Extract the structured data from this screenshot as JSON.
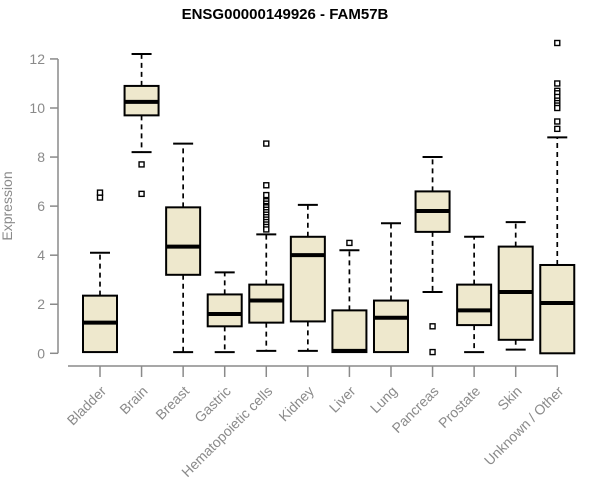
{
  "chart_data": {
    "type": "boxplot",
    "title": "ENSG00000149926 - FAM57B",
    "xlabel": "",
    "ylabel": "Expression",
    "ylim": [
      0,
      12
    ],
    "yticks": [
      0,
      2,
      4,
      6,
      8,
      10,
      12
    ],
    "grid": false,
    "legend": null,
    "categories": [
      "Bladder",
      "Brain",
      "Breast",
      "Gastric",
      "Hematopoietic cells",
      "Kidney",
      "Liver",
      "Lung",
      "Pancreas",
      "Prostate",
      "Skin",
      "Unknown / Other"
    ],
    "series": [
      {
        "name": "Bladder",
        "low": 0.05,
        "q1": 0.05,
        "median": 1.25,
        "q3": 2.35,
        "high": 4.1,
        "outliers": [
          6.35,
          6.55
        ]
      },
      {
        "name": "Brain",
        "low": 8.2,
        "q1": 9.7,
        "median": 10.25,
        "q3": 10.9,
        "high": 12.2,
        "outliers": [
          7.7,
          6.5
        ]
      },
      {
        "name": "Breast",
        "low": 0.05,
        "q1": 3.2,
        "median": 4.35,
        "q3": 5.95,
        "high": 8.55,
        "outliers": []
      },
      {
        "name": "Gastric",
        "low": 0.05,
        "q1": 1.1,
        "median": 1.6,
        "q3": 2.4,
        "high": 3.3,
        "outliers": []
      },
      {
        "name": "Hematopoietic cells",
        "low": 0.1,
        "q1": 1.25,
        "median": 2.15,
        "q3": 2.8,
        "high": 4.85,
        "outliers": [
          8.55,
          6.85,
          6.45,
          6.2,
          6.1,
          6.0,
          5.95,
          5.85,
          5.75,
          5.65,
          5.55,
          5.45,
          5.35,
          5.25,
          5.15,
          5.05
        ]
      },
      {
        "name": "Kidney",
        "low": 0.1,
        "q1": 1.3,
        "median": 4.0,
        "q3": 4.75,
        "high": 6.05,
        "outliers": []
      },
      {
        "name": "Liver",
        "low": 0.05,
        "q1": 0.05,
        "median": 0.1,
        "q3": 1.75,
        "high": 4.2,
        "outliers": [
          4.5
        ]
      },
      {
        "name": "Lung",
        "low": 0.05,
        "q1": 0.05,
        "median": 1.45,
        "q3": 2.15,
        "high": 5.3,
        "outliers": []
      },
      {
        "name": "Pancreas",
        "low": 2.5,
        "q1": 4.95,
        "median": 5.8,
        "q3": 6.6,
        "high": 8.0,
        "outliers": [
          1.1,
          0.05
        ]
      },
      {
        "name": "Prostate",
        "low": 0.05,
        "q1": 1.15,
        "median": 1.75,
        "q3": 2.8,
        "high": 4.75,
        "outliers": []
      },
      {
        "name": "Skin",
        "low": 0.15,
        "q1": 0.55,
        "median": 2.5,
        "q3": 4.35,
        "high": 5.35,
        "outliers": []
      },
      {
        "name": "Unknown / Other",
        "low": 0.0,
        "q1": 0.0,
        "median": 2.05,
        "q3": 3.6,
        "high": 8.8,
        "outliers": [
          12.65,
          11.0,
          10.7,
          10.6,
          10.45,
          10.3,
          10.2,
          10.1,
          10.0,
          9.45,
          9.15
        ]
      }
    ],
    "colors": {
      "box_fill": "#EEE8CD",
      "box_border": "#000000",
      "median": "#000000",
      "whisker": "#000000",
      "outlier_stroke": "#000000",
      "outlier_fill": "#ffffff",
      "axis_line": "#8a8a8a",
      "axis_text": "#8a8a8a",
      "title_text": "#000000",
      "background": "#ffffff"
    }
  }
}
